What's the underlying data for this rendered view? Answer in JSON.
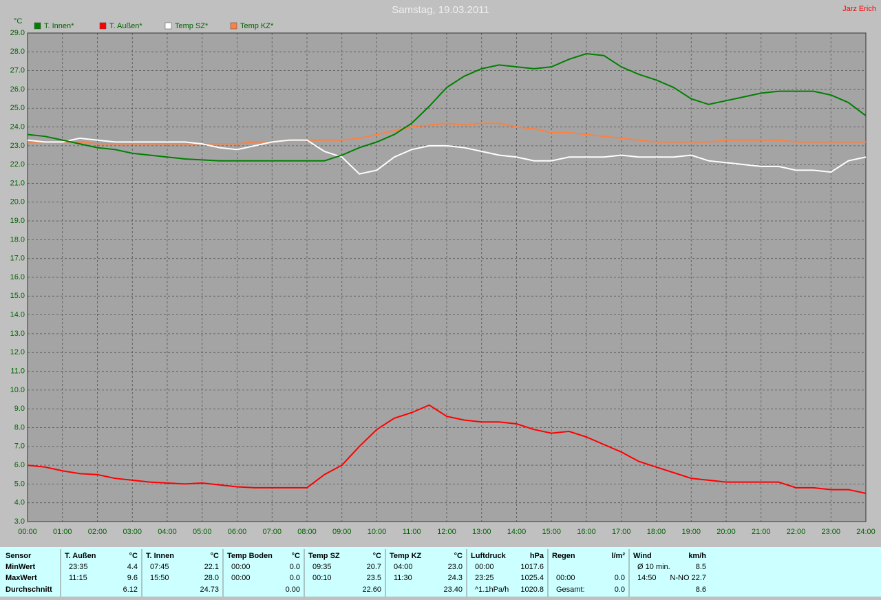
{
  "chart_data": {
    "type": "line",
    "title": "Samstag, 19.03.2011",
    "author": "Jarz Erich",
    "y_label": "°C",
    "x": [
      0,
      0.5,
      1,
      1.5,
      2,
      2.5,
      3,
      3.5,
      4,
      4.5,
      5,
      5.5,
      6,
      6.5,
      7,
      7.5,
      8,
      8.5,
      9,
      9.5,
      10,
      10.5,
      11,
      11.5,
      12,
      12.5,
      13,
      13.5,
      14,
      14.5,
      15,
      15.5,
      16,
      16.5,
      17,
      17.5,
      18,
      18.5,
      19,
      19.5,
      20,
      20.5,
      21,
      21.5,
      22,
      22.5,
      23,
      23.5,
      24
    ],
    "xlim": [
      0,
      24
    ],
    "xticks": [
      {
        "value": 0,
        "label": "00:00"
      },
      {
        "value": 1,
        "label": "01:00"
      },
      {
        "value": 2,
        "label": "02:00"
      },
      {
        "value": 3,
        "label": "03:00"
      },
      {
        "value": 4,
        "label": "04:00"
      },
      {
        "value": 5,
        "label": "05:00"
      },
      {
        "value": 6,
        "label": "06:00"
      },
      {
        "value": 7,
        "label": "07:00"
      },
      {
        "value": 8,
        "label": "08:00"
      },
      {
        "value": 9,
        "label": "09:00"
      },
      {
        "value": 10,
        "label": "10:00"
      },
      {
        "value": 11,
        "label": "11:00"
      },
      {
        "value": 12,
        "label": "12:00"
      },
      {
        "value": 13,
        "label": "13:00"
      },
      {
        "value": 14,
        "label": "14:00"
      },
      {
        "value": 15,
        "label": "15:00"
      },
      {
        "value": 16,
        "label": "16:00"
      },
      {
        "value": 17,
        "label": "17:00"
      },
      {
        "value": 18,
        "label": "18:00"
      },
      {
        "value": 19,
        "label": "19:00"
      },
      {
        "value": 20,
        "label": "20:00"
      },
      {
        "value": 21,
        "label": "21:00"
      },
      {
        "value": 22,
        "label": "22:00"
      },
      {
        "value": 23,
        "label": "23:00"
      },
      {
        "value": 24,
        "label": "24:00"
      }
    ],
    "ylim": [
      3,
      29
    ],
    "yticks": [
      {
        "value": 3,
        "label": "3.0"
      },
      {
        "value": 4,
        "label": "4.0"
      },
      {
        "value": 5,
        "label": "5.0"
      },
      {
        "value": 6,
        "label": "6.0"
      },
      {
        "value": 7,
        "label": "7.0"
      },
      {
        "value": 8,
        "label": "8.0"
      },
      {
        "value": 9,
        "label": "9.0"
      },
      {
        "value": 10,
        "label": "10.0"
      },
      {
        "value": 11,
        "label": "11.0"
      },
      {
        "value": 12,
        "label": "12.0"
      },
      {
        "value": 13,
        "label": "13.0"
      },
      {
        "value": 14,
        "label": "14.0"
      },
      {
        "value": 15,
        "label": "15.0"
      },
      {
        "value": 16,
        "label": "16.0"
      },
      {
        "value": 17,
        "label": "17.0"
      },
      {
        "value": 18,
        "label": "18.0"
      },
      {
        "value": 19,
        "label": "19.0"
      },
      {
        "value": 20,
        "label": "20.0"
      },
      {
        "value": 21,
        "label": "21.0"
      },
      {
        "value": 22,
        "label": "22.0"
      },
      {
        "value": 23,
        "label": "23.0"
      },
      {
        "value": 24,
        "label": "24.0"
      },
      {
        "value": 25,
        "label": "25.0"
      },
      {
        "value": 26,
        "label": "26.0"
      },
      {
        "value": 27,
        "label": "27.0"
      },
      {
        "value": 28,
        "label": "28.0"
      },
      {
        "value": 29,
        "label": "29.0"
      }
    ],
    "grid": true,
    "series": [
      {
        "name": "T. Innen*",
        "color": "#008000",
        "values": [
          23.6,
          23.5,
          23.3,
          23.1,
          22.9,
          22.8,
          22.6,
          22.5,
          22.4,
          22.3,
          22.25,
          22.2,
          22.2,
          22.2,
          22.2,
          22.2,
          22.2,
          22.2,
          22.5,
          22.9,
          23.2,
          23.6,
          24.2,
          25.1,
          26.1,
          26.7,
          27.1,
          27.3,
          27.2,
          27.1,
          27.2,
          27.6,
          27.9,
          27.8,
          27.2,
          26.8,
          26.5,
          26.1,
          25.5,
          25.2,
          25.4,
          25.6,
          25.8,
          25.9,
          25.9,
          25.9,
          25.7,
          25.3,
          24.6
        ]
      },
      {
        "name": "T. Außen*",
        "color": "#ff0000",
        "values": [
          6.0,
          5.9,
          5.7,
          5.55,
          5.5,
          5.3,
          5.2,
          5.1,
          5.05,
          5.0,
          5.05,
          4.95,
          4.85,
          4.8,
          4.8,
          4.8,
          4.8,
          5.5,
          6.0,
          7.0,
          7.9,
          8.5,
          8.8,
          9.2,
          8.6,
          8.4,
          8.3,
          8.3,
          8.2,
          7.9,
          7.7,
          7.8,
          7.5,
          7.1,
          6.7,
          6.2,
          5.9,
          5.6,
          5.3,
          5.2,
          5.1,
          5.1,
          5.1,
          5.1,
          4.8,
          4.8,
          4.7,
          4.7,
          4.5
        ]
      },
      {
        "name": "Temp SZ*",
        "color": "#ffffff",
        "values": [
          23.3,
          23.2,
          23.2,
          23.4,
          23.3,
          23.2,
          23.2,
          23.2,
          23.2,
          23.2,
          23.1,
          22.9,
          22.8,
          23.0,
          23.2,
          23.3,
          23.3,
          22.7,
          22.4,
          21.5,
          21.7,
          22.4,
          22.8,
          23.0,
          23.0,
          22.9,
          22.7,
          22.5,
          22.4,
          22.2,
          22.2,
          22.4,
          22.4,
          22.4,
          22.5,
          22.4,
          22.4,
          22.4,
          22.5,
          22.2,
          22.1,
          22.0,
          21.9,
          21.9,
          21.7,
          21.7,
          21.6,
          22.2,
          22.4
        ]
      },
      {
        "name": "Temp KZ*",
        "color": "#ff8040",
        "values": [
          23.2,
          23.2,
          23.2,
          23.2,
          23.1,
          23.1,
          23.1,
          23.1,
          23.1,
          23.1,
          23.1,
          23.1,
          23.1,
          23.2,
          23.2,
          23.3,
          23.3,
          23.3,
          23.3,
          23.4,
          23.6,
          23.8,
          24.0,
          24.1,
          24.2,
          24.1,
          24.2,
          24.2,
          24.0,
          23.9,
          23.7,
          23.7,
          23.6,
          23.5,
          23.4,
          23.3,
          23.2,
          23.2,
          23.2,
          23.2,
          23.3,
          23.3,
          23.3,
          23.3,
          23.2,
          23.2,
          23.2,
          23.2,
          23.2
        ]
      }
    ]
  },
  "summary_table": {
    "row_labels": [
      "Sensor",
      "MinWert",
      "MaxWert",
      "Durchschnitt"
    ],
    "groups": [
      {
        "name": "T. Außen",
        "unit": "°C",
        "rows": [
          [
            "23:35",
            "4.4"
          ],
          [
            "11:15",
            "9.6"
          ],
          [
            null,
            "6.12"
          ]
        ]
      },
      {
        "name": "T. Innen",
        "unit": "°C",
        "rows": [
          [
            "07:45",
            "22.1"
          ],
          [
            "15:50",
            "28.0"
          ],
          [
            null,
            "24.73"
          ]
        ]
      },
      {
        "name": "Temp Boden",
        "unit": "°C",
        "rows": [
          [
            "00:00",
            "0.0"
          ],
          [
            "00:00",
            "0.0"
          ],
          [
            null,
            "0.00"
          ]
        ]
      },
      {
        "name": "Temp SZ",
        "unit": "°C",
        "rows": [
          [
            "09:35",
            "20.7"
          ],
          [
            "00:10",
            "23.5"
          ],
          [
            null,
            "22.60"
          ]
        ]
      },
      {
        "name": "Temp KZ",
        "unit": "°C",
        "rows": [
          [
            "04:00",
            "23.0"
          ],
          [
            "11:30",
            "24.3"
          ],
          [
            null,
            "23.40"
          ]
        ]
      },
      {
        "name": "Luftdruck",
        "unit": "hPa",
        "rows": [
          [
            "00:00",
            "1017.6"
          ],
          [
            "23:25",
            "1025.4"
          ],
          [
            "^1.1hPa/h",
            "1020.8"
          ]
        ]
      },
      {
        "name": "Regen",
        "unit": "l/m²",
        "rows": [
          [
            null,
            null
          ],
          [
            "00:00",
            "0.0"
          ],
          [
            "Gesamt:",
            "0.0"
          ]
        ]
      },
      {
        "name": "Wind",
        "unit": "km/h",
        "rows": [
          [
            "Ø 10 min.",
            "8.5"
          ],
          [
            "14:50",
            "N-NO 22.7"
          ],
          [
            null,
            "8.6"
          ]
        ]
      }
    ]
  }
}
